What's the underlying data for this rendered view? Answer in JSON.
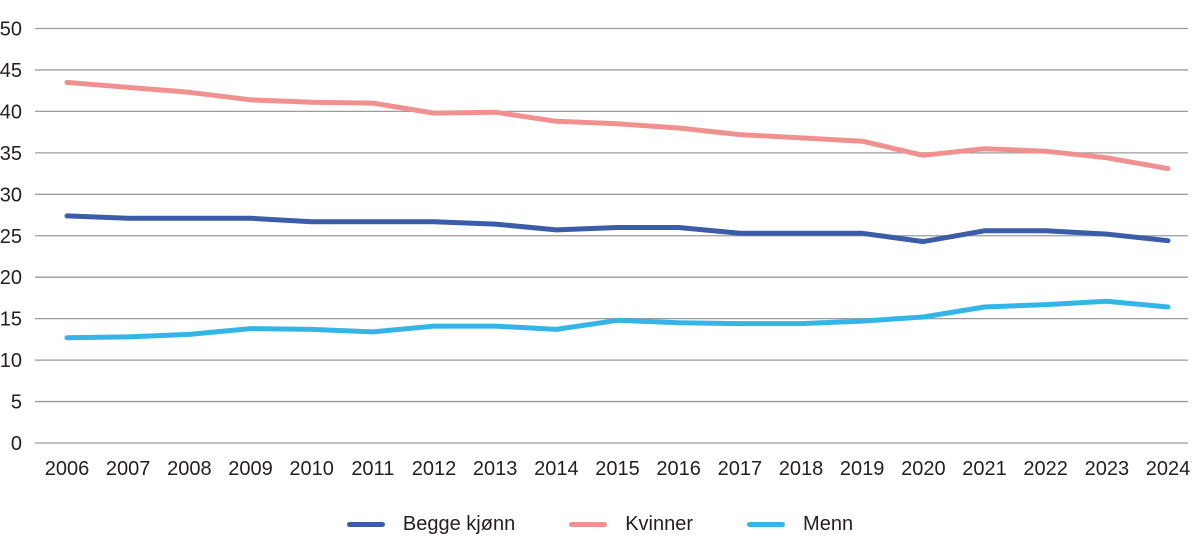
{
  "chart_data": {
    "type": "line",
    "title": "",
    "xlabel": "",
    "ylabel": "",
    "categories": [
      "2006",
      "2007",
      "2008",
      "2009",
      "2010",
      "2011",
      "2012",
      "2013",
      "2014",
      "2015",
      "2016",
      "2017",
      "2018",
      "2019",
      "2020",
      "2021",
      "2022",
      "2023",
      "2024"
    ],
    "series": [
      {
        "name": "Begge kjønn",
        "color": "#3b5ca8",
        "values": [
          27.4,
          27.1,
          27.1,
          27.1,
          26.7,
          26.7,
          26.7,
          26.4,
          25.7,
          26.0,
          26.0,
          25.3,
          25.3,
          25.3,
          24.3,
          25.6,
          25.6,
          25.2,
          24.4
        ]
      },
      {
        "name": "Kvinner",
        "color": "#f1918f",
        "values": [
          43.5,
          42.9,
          42.3,
          41.4,
          41.1,
          41.0,
          39.8,
          39.9,
          38.8,
          38.5,
          38.0,
          37.2,
          36.8,
          36.4,
          34.7,
          35.5,
          35.2,
          34.4,
          33.1
        ]
      },
      {
        "name": "Menn",
        "color": "#33b5e8",
        "values": [
          12.7,
          12.8,
          13.1,
          13.8,
          13.7,
          13.4,
          14.1,
          14.1,
          13.7,
          14.8,
          14.5,
          14.4,
          14.4,
          14.7,
          15.2,
          16.4,
          16.7,
          17.1,
          16.4
        ]
      }
    ],
    "ylim": [
      0,
      50
    ],
    "yticks": [
      0,
      5,
      10,
      15,
      20,
      25,
      30,
      35,
      40,
      45,
      50
    ],
    "grid": "horizontal",
    "legend_position": "bottom"
  },
  "colors": {
    "grid": "#9c9c9c",
    "text": "#231f20",
    "background": "#ffffff"
  }
}
